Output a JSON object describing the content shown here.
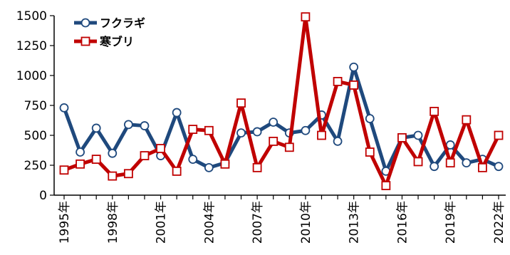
{
  "chart_data": {
    "type": "line",
    "x": [
      1995,
      1996,
      1997,
      1998,
      1999,
      2000,
      2001,
      2002,
      2003,
      2004,
      2005,
      2006,
      2007,
      2008,
      2009,
      2010,
      2011,
      2012,
      2013,
      2014,
      2015,
      2016,
      2017,
      2018,
      2019,
      2020,
      2021,
      2022
    ],
    "x_tick_labels": [
      "1995年",
      "1998年",
      "2001年",
      "2004年",
      "2007年",
      "2010年",
      "2013年",
      "2016年",
      "2019年",
      "2022年"
    ],
    "x_tick_years": [
      1995,
      1998,
      2001,
      2004,
      2007,
      2010,
      2013,
      2016,
      2019,
      2022
    ],
    "y_tick_labels": [
      "0",
      "250",
      "500",
      "750",
      "1000",
      "1250",
      "1500"
    ],
    "ylim": [
      0,
      1500
    ],
    "grid": false,
    "legend_placement": "top-left",
    "series": [
      {
        "name": "フクラギ",
        "color": "#1f497d",
        "marker": "circle",
        "values": [
          730,
          360,
          560,
          350,
          590,
          580,
          330,
          690,
          300,
          230,
          270,
          520,
          530,
          610,
          520,
          540,
          670,
          450,
          1070,
          640,
          200,
          480,
          500,
          240,
          420,
          270,
          300,
          240
        ]
      },
      {
        "name": "寒ブリ",
        "color": "#c00000",
        "marker": "square",
        "values": [
          210,
          260,
          300,
          160,
          180,
          330,
          390,
          200,
          550,
          540,
          260,
          770,
          230,
          450,
          400,
          1490,
          500,
          950,
          920,
          360,
          80,
          480,
          280,
          700,
          270,
          630,
          230,
          500
        ]
      }
    ]
  }
}
